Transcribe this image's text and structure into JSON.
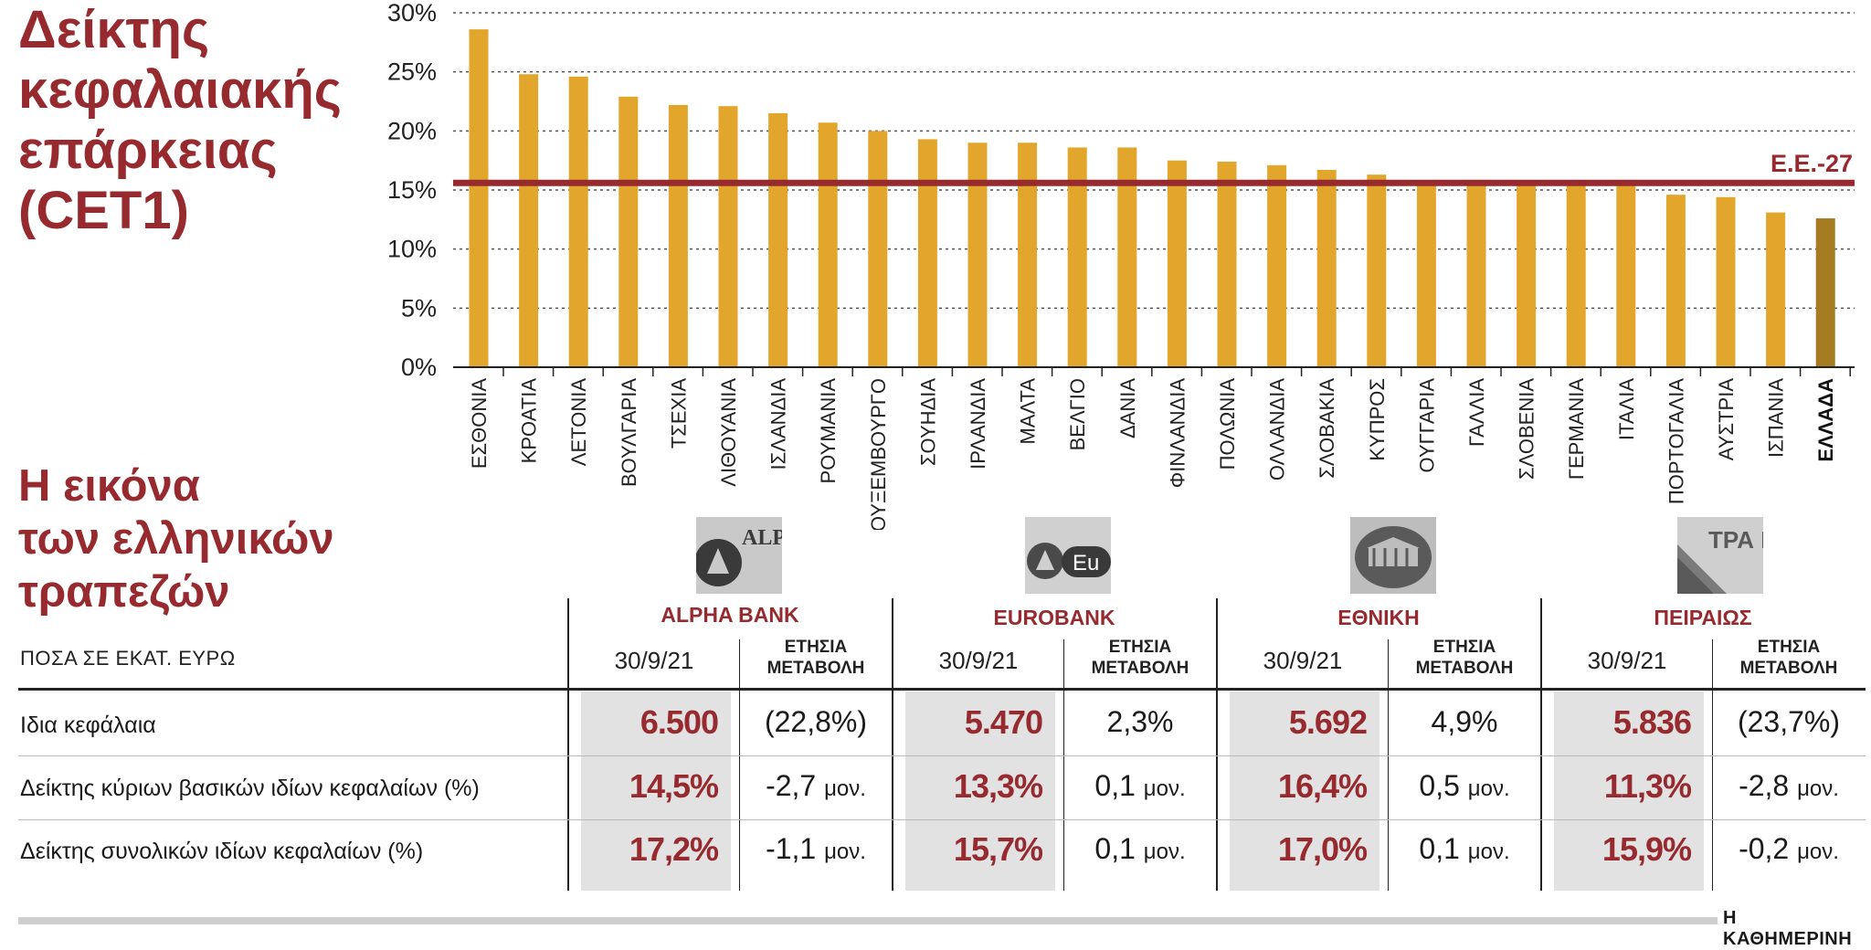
{
  "title": {
    "lines": [
      "Δείκτης",
      "κεφαλαιακής",
      "επάρκειας",
      "(CET1)"
    ]
  },
  "subtitle": {
    "lines": [
      "Η εικόνα",
      "των ελληνικών",
      "τραπεζών"
    ]
  },
  "chart_data": {
    "type": "bar",
    "title": "Δείκτης κεφαλαιακής επάρκειας (CET1)",
    "xlabel": "",
    "ylabel": "",
    "ylim": [
      0,
      30
    ],
    "yticks": [
      "0%",
      "5%",
      "10%",
      "15%",
      "20%",
      "25%",
      "30%"
    ],
    "grid": true,
    "categories": [
      "ΕΣΘΟΝΙΑ",
      "ΚΡΟΑΤΙΑ",
      "ΛΕΤΟΝΙΑ",
      "ΒΟΥΛΓΑΡΙΑ",
      "ΤΣΕΧΙΑ",
      "ΛΙΘΟΥΑΝΙΑ",
      "ΙΣΛΑΝΔΙΑ",
      "ΡΟΥΜΑΝΙΑ",
      "ΛΟΥΞΕΜΒΟΥΡΓΟ",
      "ΣΟΥΗΔΙΑ",
      "ΙΡΛΑΝΔΙΑ",
      "ΜΑΛΤΑ",
      "ΒΕΛΓΙΟ",
      "ΔΑΝΙΑ",
      "ΦΙΝΛΑΝΔΙΑ",
      "ΠΟΛΩΝΙΑ",
      "ΟΛΛΑΝΔΙΑ",
      "ΣΛΟΒΑΚΙΑ",
      "ΚΥΠΡΟΣ",
      "ΟΥΓΓΑΡΙΑ",
      "ΓΑΛΛΙΑ",
      "ΣΛΟΒΕΝΙΑ",
      "ΓΕΡΜΑΝΙΑ",
      "ΙΤΑΛΙΑ",
      "ΠΟΡΤΟΓΑΛΙΑ",
      "ΑΥΣΤΡΙΑ",
      "ΙΣΠΑΝΙΑ",
      "ΕΛΛΑΔΑ"
    ],
    "values": [
      28.6,
      24.8,
      24.6,
      22.9,
      22.2,
      22.1,
      21.5,
      20.7,
      20.0,
      19.3,
      19.0,
      19.0,
      18.6,
      18.6,
      17.5,
      17.4,
      17.1,
      16.7,
      16.3,
      15.8,
      15.7,
      15.7,
      15.6,
      15.6,
      14.6,
      14.4,
      13.1,
      12.6
    ],
    "highlight": "ΕΛΛΑΔΑ",
    "reference_line": {
      "label": "Ε.Ε.-27",
      "value": 15.6
    },
    "colors": {
      "bar": "#e3a62c",
      "highlight": "#a67c22",
      "reference": "#962a2f"
    }
  },
  "table": {
    "units": "ΠΟΣΑ ΣΕ ΕΚΑΤ. ΕΥΡΩ",
    "banks": [
      {
        "name": "ALPHA BANK",
        "logo": "alpha-bank-logo",
        "logo_text": "ALP BA",
        "col1": "30/9/21",
        "col2_l1": "ΕΤΗΣΙΑ",
        "col2_l2": "ΜΕΤΑΒΟΛΗ"
      },
      {
        "name": "EUROBANK",
        "logo": "eurobank-logo",
        "logo_text": "Eu",
        "col1": "30/9/21",
        "col2_l1": "ΕΤΗΣΙΑ",
        "col2_l2": "ΜΕΤΑΒΟΛΗ"
      },
      {
        "name": "ΕΘΝΙΚΗ",
        "logo": "national-bank-logo",
        "logo_text": "",
        "col1": "30/9/21",
        "col2_l1": "ΕΤΗΣΙΑ",
        "col2_l2": "ΜΕΤΑΒΟΛΗ"
      },
      {
        "name": "ΠΕΙΡΑΙΩΣ",
        "logo": "piraeus-bank-logo",
        "logo_text": "ΤΡΑ ΠΕΙ",
        "col1": "30/9/21",
        "col2_l1": "ΕΤΗΣΙΑ",
        "col2_l2": "ΜΕΤΑΒΟΛΗ"
      }
    ],
    "rows": [
      {
        "label": "Ιδια κεφάλαια",
        "cells": [
          {
            "value": "6.500",
            "change": "(22,8%)",
            "unit": ""
          },
          {
            "value": "5.470",
            "change": "2,3%",
            "unit": ""
          },
          {
            "value": "5.692",
            "change": "4,9%",
            "unit": ""
          },
          {
            "value": "5.836",
            "change": "(23,7%)",
            "unit": ""
          }
        ]
      },
      {
        "label": "Δείκτης κύριων βασικών ιδίων κεφαλαίων (%)",
        "cells": [
          {
            "value": "14,5%",
            "change": "-2,7",
            "unit": "μον."
          },
          {
            "value": "13,3%",
            "change": "0,1",
            "unit": "μον."
          },
          {
            "value": "16,4%",
            "change": "0,5",
            "unit": "μον."
          },
          {
            "value": "11,3%",
            "change": "-2,8",
            "unit": "μον."
          }
        ]
      },
      {
        "label": "Δείκτης συνολικών ιδίων κεφαλαίων (%)",
        "cells": [
          {
            "value": "17,2%",
            "change": "-1,1",
            "unit": "μον."
          },
          {
            "value": "15,7%",
            "change": "0,1",
            "unit": "μον."
          },
          {
            "value": "17,0%",
            "change": "0,1",
            "unit": "μον."
          },
          {
            "value": "15,9%",
            "change": "-0,2",
            "unit": "μον."
          }
        ]
      }
    ]
  },
  "credit": "Η ΚΑΘΗΜΕΡΙΝΗ"
}
